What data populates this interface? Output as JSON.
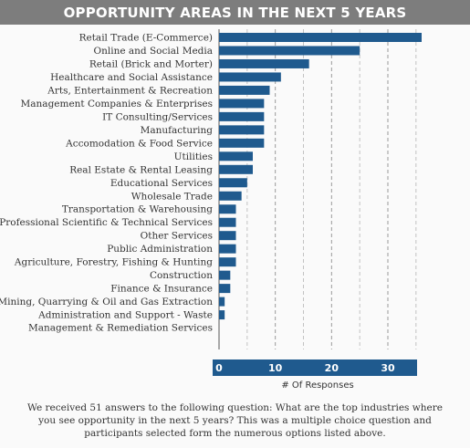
{
  "title": "OPPORTUNITY AREAS IN THE NEXT 5 YEARS",
  "caption": "We received 51 answers to the following question: What are the top industries where you see opportunity in the next 5 years? This was a multiple choice question and participants selected form the numerous options listed above.",
  "colors": {
    "bar": "#1f5a8e",
    "axis_band": "#1f5a8e",
    "title_bg": "#7d7d7d"
  },
  "chart_data": {
    "type": "bar",
    "orientation": "horizontal",
    "categories": [
      [
        "Retail Trade (E-Commerce)"
      ],
      [
        "Online and Social Media"
      ],
      [
        "Retail (Brick and Morter)"
      ],
      [
        "Healthcare and Social Assistance"
      ],
      [
        "Arts, Entertainment & Recreation"
      ],
      [
        "Management Companies & Enterprises"
      ],
      [
        "IT Consulting/Services"
      ],
      [
        "Manufacturing"
      ],
      [
        "Accomodation & Food Service"
      ],
      [
        "Utilities"
      ],
      [
        "Real Estate & Rental Leasing"
      ],
      [
        "Educational Services"
      ],
      [
        "Wholesale Trade"
      ],
      [
        "Transportation & Warehousing"
      ],
      [
        "Professional Scientific & Technical Services"
      ],
      [
        "Other Services"
      ],
      [
        "Public Administration"
      ],
      [
        "Agriculture, Forestry, Fishing & Hunting"
      ],
      [
        "Construction"
      ],
      [
        "Finance & Insurance"
      ],
      [
        "Mining, Quarrying & Oil and Gas Extraction"
      ],
      [
        "Administration and Support - Waste",
        "Management & Remediation Services"
      ]
    ],
    "values": [
      36,
      25,
      16,
      11,
      9,
      8,
      8,
      8,
      8,
      6,
      6,
      5,
      4,
      3,
      3,
      3,
      3,
      3,
      2,
      2,
      1,
      1
    ],
    "xlabel": "# Of Responses",
    "ylabel": "",
    "xlim": [
      0,
      35
    ],
    "xticks": [
      0,
      10,
      20,
      30
    ],
    "grid": true
  }
}
